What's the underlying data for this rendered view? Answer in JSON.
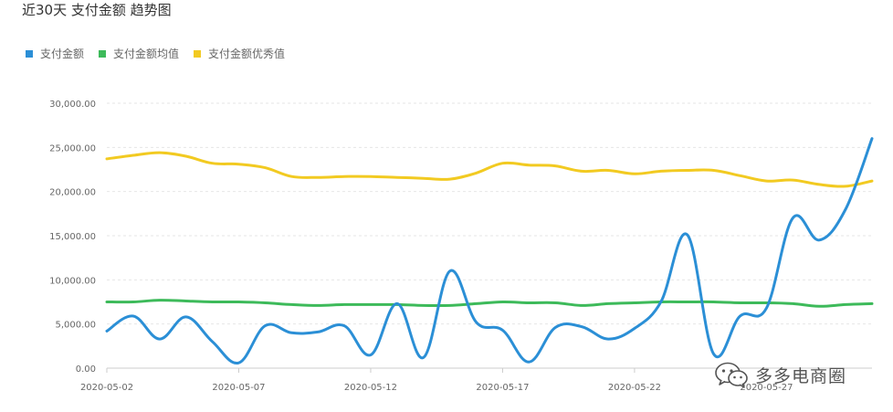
{
  "title": "近30天 支付金额 趋势图",
  "watermark": {
    "text": "多多电商圈",
    "icon": "wechat-icon"
  },
  "colors": {
    "blue": "#2b8fd6",
    "green": "#3dba5a",
    "yellow": "#f2ca21",
    "grid": "#e6e6e6",
    "axis": "#cccccc"
  },
  "chart_data": {
    "type": "line",
    "title": "近30天 支付金额 趋势图",
    "legend_position": "top-left",
    "grid": true,
    "ylim": [
      0,
      30000
    ],
    "y_ticks": [
      0,
      5000,
      10000,
      15000,
      20000,
      25000,
      30000
    ],
    "y_tick_labels": [
      "0.00",
      "5,000.00",
      "10,000.00",
      "15,000.00",
      "20,000.00",
      "25,000.00",
      "30,000.00"
    ],
    "x": [
      "2020-05-02",
      "2020-05-03",
      "2020-05-04",
      "2020-05-05",
      "2020-05-06",
      "2020-05-07",
      "2020-05-08",
      "2020-05-09",
      "2020-05-10",
      "2020-05-11",
      "2020-05-12",
      "2020-05-13",
      "2020-05-14",
      "2020-05-15",
      "2020-05-16",
      "2020-05-17",
      "2020-05-18",
      "2020-05-19",
      "2020-05-20",
      "2020-05-21",
      "2020-05-22",
      "2020-05-23",
      "2020-05-24",
      "2020-05-25",
      "2020-05-26",
      "2020-05-27",
      "2020-05-28",
      "2020-05-29",
      "2020-05-30",
      "2020-05-31"
    ],
    "x_tick_labels": [
      "2020-05-02",
      "2020-05-07",
      "2020-05-12",
      "2020-05-17",
      "2020-05-22",
      "2020-05-27"
    ],
    "series": [
      {
        "name": "支付金额",
        "color": "#2b8fd6",
        "values": [
          4200,
          5900,
          3300,
          5800,
          3000,
          600,
          4800,
          4000,
          4100,
          4800,
          1500,
          7300,
          1200,
          11000,
          5200,
          4300,
          700,
          4600,
          4700,
          3300,
          4500,
          7500,
          15100,
          1600,
          5900,
          6800,
          17000,
          14500,
          18000,
          26000
        ]
      },
      {
        "name": "支付金额均值",
        "color": "#3dba5a",
        "values": [
          7500,
          7500,
          7700,
          7600,
          7500,
          7500,
          7400,
          7200,
          7100,
          7200,
          7200,
          7200,
          7100,
          7100,
          7300,
          7500,
          7400,
          7400,
          7100,
          7300,
          7400,
          7500,
          7500,
          7500,
          7400,
          7400,
          7300,
          7000,
          7200,
          7300
        ]
      },
      {
        "name": "支付金额优秀值",
        "color": "#f2ca21",
        "values": [
          23700,
          24100,
          24400,
          24000,
          23200,
          23100,
          22700,
          21700,
          21600,
          21700,
          21700,
          21600,
          21500,
          21400,
          22100,
          23200,
          23000,
          22900,
          22300,
          22400,
          22000,
          22300,
          22400,
          22400,
          21800,
          21200,
          21300,
          20800,
          20600,
          21200
        ]
      }
    ]
  }
}
